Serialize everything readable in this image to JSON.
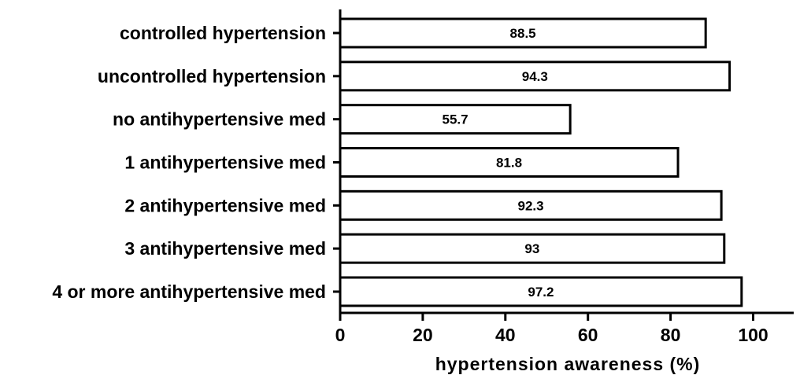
{
  "chart_data": {
    "type": "bar",
    "orientation": "horizontal",
    "categories": [
      "controlled hypertension",
      "uncontrolled hypertension",
      "no antihypertensive med",
      "1 antihypertensive med",
      "2 antihypertensive med",
      "3 antihypertensive med",
      "4 or more antihypertensive med"
    ],
    "values": [
      88.5,
      94.3,
      55.7,
      81.8,
      92.3,
      93,
      97.2
    ],
    "value_labels": [
      "88.5",
      "94.3",
      "55.7",
      "81.8",
      "92.3",
      "93",
      "97.2"
    ],
    "title": "",
    "xlabel": "hypertension awareness (%)",
    "ylabel": "",
    "xlim": [
      0,
      110
    ],
    "xticks": [
      0,
      20,
      40,
      60,
      80,
      100
    ],
    "xtick_labels": [
      "0",
      "20",
      "40",
      "60",
      "80",
      "100"
    ],
    "grid": false,
    "bar_fill": "#ffffff",
    "bar_stroke": "#000000"
  }
}
